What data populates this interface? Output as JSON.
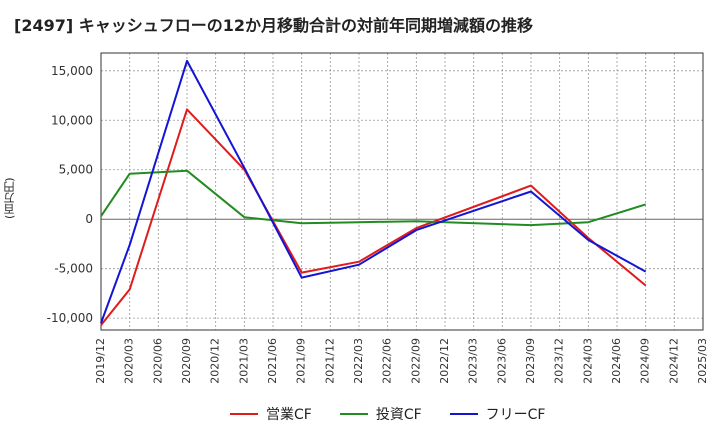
{
  "title": "[2497]  キャッシュフローの12か月移動合計の対前年同期増減額の推移",
  "chart_data": {
    "type": "line",
    "title": "[2497]  キャッシュフローの12か月移動合計の対前年同期増減額の推移",
    "ylabel": "(百万円)",
    "xlabel": "",
    "ylim": [
      -11200,
      16800
    ],
    "yticks": [
      15000,
      10000,
      5000,
      0,
      -5000,
      -10000
    ],
    "ytick_labels": [
      "15,000",
      "10,000",
      "5,000",
      "0",
      "-5,000",
      "-10,000"
    ],
    "x_labels": [
      "2019/12",
      "2020/03",
      "2020/06",
      "2020/09",
      "2020/12",
      "2021/03",
      "2021/06",
      "2021/09",
      "2021/12",
      "2022/03",
      "2022/06",
      "2022/09",
      "2022/12",
      "2023/03",
      "2023/06",
      "2023/09",
      "2023/12",
      "2024/03",
      "2024/06",
      "2024/09",
      "2024/12",
      "2025/03"
    ],
    "grid": true,
    "legend_position": "bottom",
    "series": [
      {
        "name": "営業CF",
        "color": "#e01b1b",
        "x": [
          "2019/12",
          "2020/03",
          "2020/09",
          "2021/03",
          "2021/09",
          "2022/03",
          "2022/09",
          "2023/09",
          "2024/03",
          "2024/09"
        ],
        "values": [
          -10700,
          -7100,
          11100,
          5000,
          -5400,
          -4300,
          -900,
          3400,
          -1900,
          -6700
        ]
      },
      {
        "name": "投資CF",
        "color": "#228b22",
        "x": [
          "2019/12",
          "2020/03",
          "2020/09",
          "2021/03",
          "2021/09",
          "2022/03",
          "2022/09",
          "2023/09",
          "2024/03",
          "2024/09"
        ],
        "values": [
          300,
          4600,
          4900,
          200,
          -400,
          -300,
          -200,
          -600,
          -300,
          1500
        ]
      },
      {
        "name": "フリーCF",
        "color": "#1414d4",
        "x": [
          "2019/12",
          "2020/03",
          "2020/09",
          "2021/03",
          "2021/09",
          "2022/03",
          "2022/09",
          "2023/09",
          "2024/03",
          "2024/09"
        ],
        "values": [
          -10500,
          -2600,
          16000,
          5200,
          -5900,
          -4600,
          -1100,
          2800,
          -2100,
          -5300
        ]
      }
    ]
  }
}
